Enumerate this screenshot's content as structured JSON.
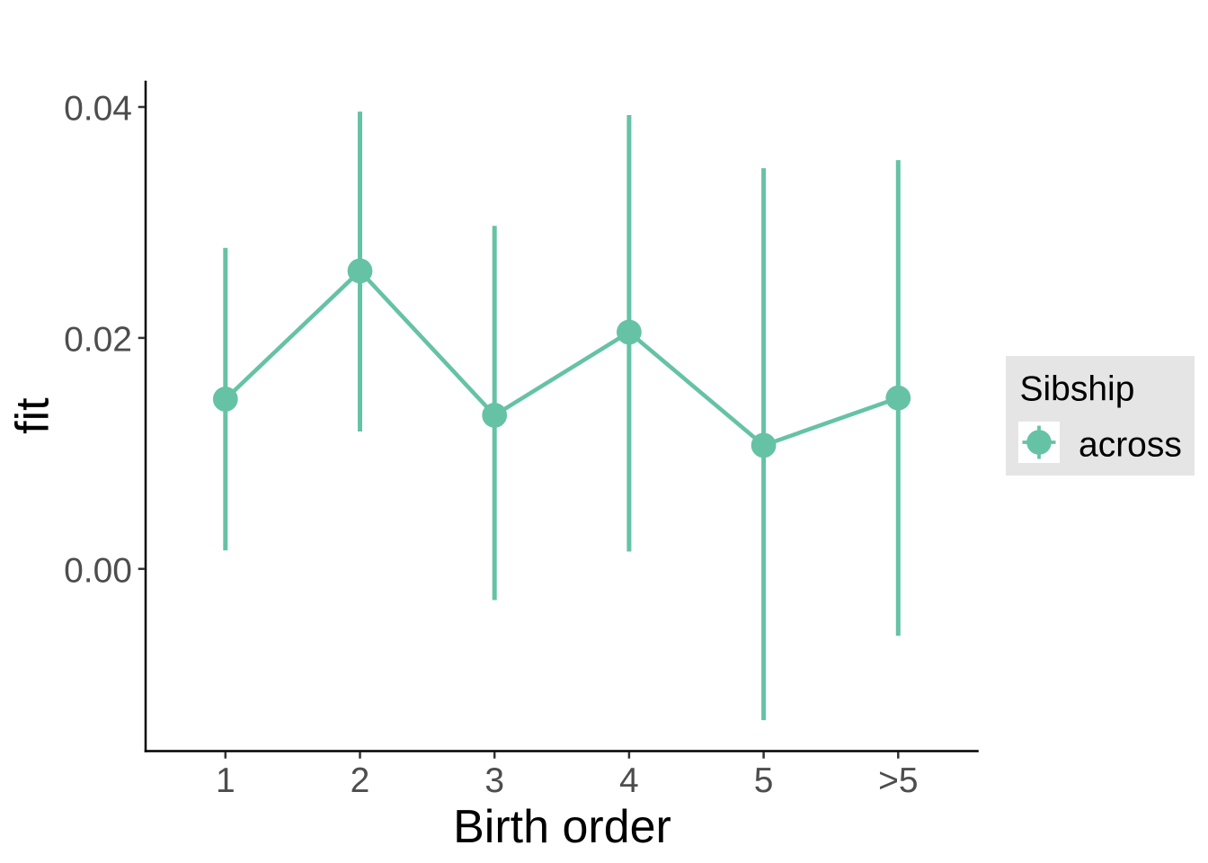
{
  "chart_data": {
    "type": "pointrange_line",
    "title": "",
    "xlabel": "Birth order",
    "ylabel": "fit",
    "categories": [
      "1",
      "2",
      "3",
      "4",
      "5",
      ">5"
    ],
    "series": [
      {
        "name": "across",
        "fit": [
          0.0147,
          0.0258,
          0.0133,
          0.0205,
          0.0107,
          0.0148
        ],
        "lower": [
          0.0016,
          0.0119,
          -0.0027,
          0.0015,
          -0.0131,
          -0.0058
        ],
        "upper": [
          0.0278,
          0.0396,
          0.0297,
          0.0393,
          0.0347,
          0.0354
        ]
      }
    ],
    "y_ticks": [
      {
        "value": 0.0,
        "label": "0.00"
      },
      {
        "value": 0.02,
        "label": "0.02"
      },
      {
        "value": 0.04,
        "label": "0.04"
      }
    ],
    "ylim": [
      -0.0158,
      0.0423
    ],
    "grid": "off",
    "legend": {
      "title": "Sibship",
      "position": "right",
      "entries": [
        {
          "label": "across",
          "glyph": "pointrange-icon"
        }
      ]
    },
    "colors": {
      "series": "#66C2A5",
      "axis_text": "#4D4D4D",
      "axis_title": "#000000",
      "axis_line": "#000000",
      "tick_mark": "#333333",
      "legend_bg": "#E5E5E5",
      "legend_key_bg": "#FFFFFF",
      "legend_text": "#000000",
      "background": "#FFFFFF"
    }
  }
}
